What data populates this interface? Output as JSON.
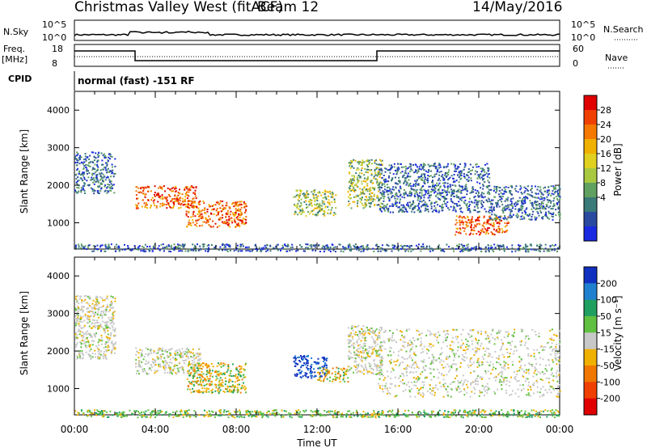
{
  "header": {
    "title": "Christmas Valley West (fitACF)",
    "beam": "Beam 12",
    "date": "14/May/2016"
  },
  "strips": {
    "nsky_label": "N.Sky",
    "nsky_ticks": [
      "10^5",
      "10^0"
    ],
    "nsearch_label": "N.Search",
    "nsearch_ticks": [
      "10^5",
      "10^0"
    ],
    "freq_label_1": "Freq.",
    "freq_label_2": "[MHz]",
    "freq_ticks": [
      "18",
      "8"
    ],
    "nave_label": "Nave",
    "nave_ticks": [
      "60",
      "0"
    ],
    "cpid_label": "CPID",
    "cpid_value": "normal (fast) -151 RF"
  },
  "chart_data": [
    {
      "type": "heatmap",
      "quantity": "Power",
      "ylabel": "Slant Range [km]",
      "y_ticks": [
        1000,
        2000,
        3000,
        4000
      ],
      "ylim": [
        300,
        4500
      ],
      "xlim_hours": [
        0,
        24
      ],
      "colorbar": {
        "label": "Power [dB]",
        "ticks": [
          "28",
          "24",
          "20",
          "16",
          "12",
          "8",
          "4"
        ],
        "colors": [
          "#e00000",
          "#f04000",
          "#f57800",
          "#f0b000",
          "#e0d020",
          "#a8c840",
          "#60a060",
          "#3a7a78",
          "#2a4aa0",
          "#1a2ae0"
        ]
      },
      "regions": [
        {
          "start_h": 3.0,
          "end_h": 6.0,
          "low_km": 1400,
          "high_km": 2000,
          "level": "high"
        },
        {
          "start_h": 5.5,
          "end_h": 8.5,
          "low_km": 900,
          "high_km": 1600,
          "level": "high"
        },
        {
          "start_h": 10.8,
          "end_h": 12.9,
          "low_km": 1200,
          "high_km": 1900,
          "level": "mid"
        },
        {
          "start_h": 13.5,
          "end_h": 15.2,
          "low_km": 1400,
          "high_km": 2700,
          "level": "mid"
        },
        {
          "start_h": 15.0,
          "end_h": 20.5,
          "low_km": 1300,
          "high_km": 2600,
          "level": "low"
        },
        {
          "start_h": 18.8,
          "end_h": 21.5,
          "low_km": 700,
          "high_km": 1200,
          "level": "high"
        },
        {
          "start_h": 20.5,
          "end_h": 24.0,
          "low_km": 1100,
          "high_km": 2000,
          "level": "low"
        },
        {
          "start_h": 0.0,
          "end_h": 2.0,
          "low_km": 1800,
          "high_km": 2900,
          "level": "low"
        },
        {
          "start_h": 0.0,
          "end_h": 24.0,
          "low_km": 250,
          "high_km": 450,
          "level": "low"
        }
      ]
    },
    {
      "type": "heatmap",
      "quantity": "Velocity",
      "ylabel": "Slant Range [km]",
      "y_ticks": [
        1000,
        2000,
        3000,
        4000
      ],
      "ylim": [
        300,
        4500
      ],
      "xlim_hours": [
        0,
        24
      ],
      "xlabel": "Time UT",
      "x_ticks": [
        "00:00",
        "04:00",
        "08:00",
        "12:00",
        "16:00",
        "20:00",
        "00:00"
      ],
      "colorbar": {
        "label": "Velocity [m s⁻¹]",
        "ticks": [
          "200",
          "100",
          "50",
          "15",
          "-15",
          "-50",
          "-100",
          "-200"
        ],
        "colors": [
          "#1030c0",
          "#2080d0",
          "#20a060",
          "#60c040",
          "#c8c8c8",
          "#f0b000",
          "#f07800",
          "#f04000",
          "#e00000"
        ]
      },
      "regions": [
        {
          "start_h": 0.0,
          "end_h": 2.0,
          "low_km": 1800,
          "high_km": 3500,
          "level": "grey"
        },
        {
          "start_h": 3.0,
          "end_h": 6.2,
          "low_km": 1400,
          "high_km": 2100,
          "level": "grey"
        },
        {
          "start_h": 5.5,
          "end_h": 8.5,
          "low_km": 900,
          "high_km": 1700,
          "level": "orange"
        },
        {
          "start_h": 10.8,
          "end_h": 12.5,
          "low_km": 1300,
          "high_km": 1900,
          "level": "blue"
        },
        {
          "start_h": 12.0,
          "end_h": 13.5,
          "low_km": 1200,
          "high_km": 1600,
          "level": "orange"
        },
        {
          "start_h": 13.5,
          "end_h": 15.2,
          "low_km": 1400,
          "high_km": 2700,
          "level": "grey"
        },
        {
          "start_h": 15.0,
          "end_h": 24.0,
          "low_km": 800,
          "high_km": 2600,
          "level": "grey"
        },
        {
          "start_h": 0.0,
          "end_h": 24.0,
          "low_km": 250,
          "high_km": 450,
          "level": "green"
        }
      ]
    }
  ]
}
